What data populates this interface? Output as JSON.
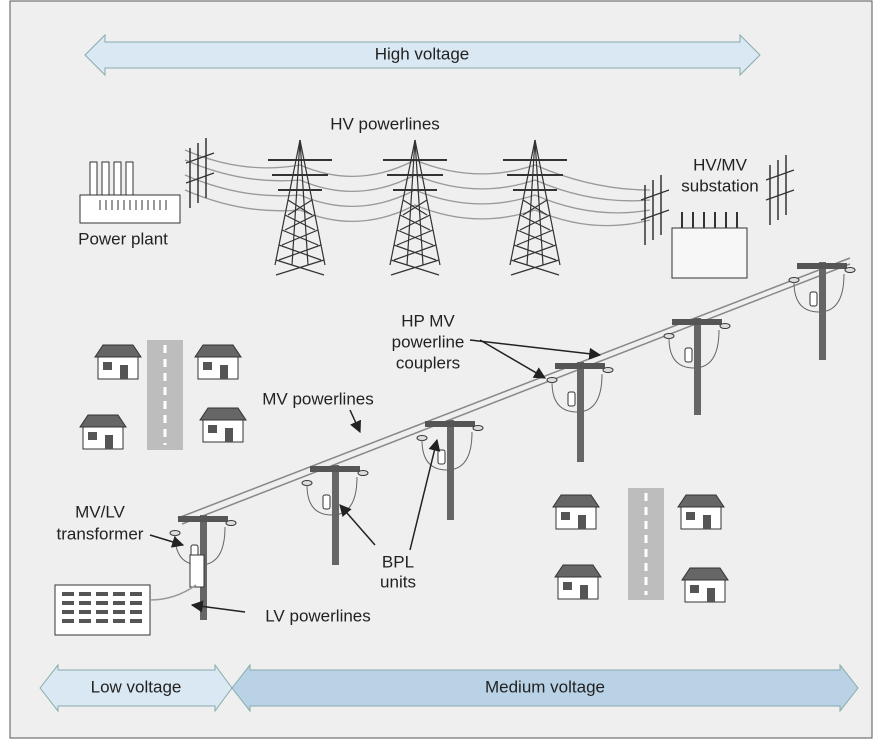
{
  "voltage_bands": {
    "high": "High voltage",
    "low": "Low voltage",
    "medium": "Medium voltage"
  },
  "labels": {
    "hv_powerlines": [
      "HV powerlines"
    ],
    "power_plant": [
      "Power plant"
    ],
    "substation": [
      "HV/MV",
      "substation"
    ],
    "couplers": [
      "HP MV",
      "powerline",
      "couplers"
    ],
    "mv_powerlines": [
      "MV powerlines"
    ],
    "transformer": [
      "MV/LV",
      "transformer"
    ],
    "bpl_units": [
      "BPL",
      "units"
    ],
    "lv_powerlines": [
      "LV powerlines"
    ]
  }
}
